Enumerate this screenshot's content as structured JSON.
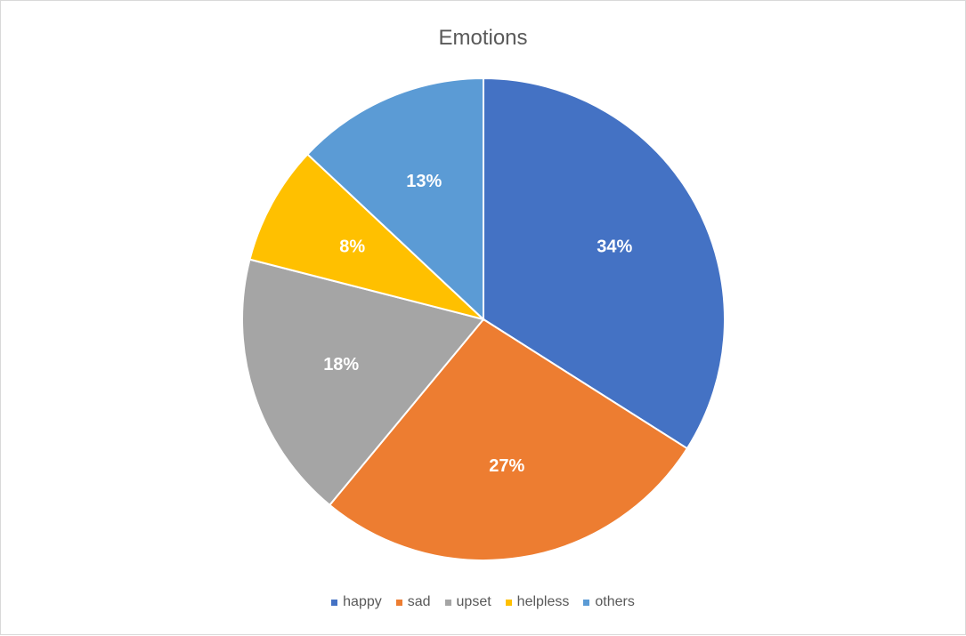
{
  "chart_data": {
    "type": "pie",
    "title": "Emotions",
    "categories": [
      "happy",
      "sad",
      "upset",
      "helpless",
      "others"
    ],
    "values": [
      34,
      27,
      18,
      8,
      13
    ],
    "labels": [
      "34%",
      "27%",
      "18%",
      "8%",
      "13%"
    ],
    "colors": [
      "#4472C4",
      "#ED7D31",
      "#A5A5A5",
      "#FFC000",
      "#5B9BD5"
    ],
    "legend_position": "bottom"
  }
}
